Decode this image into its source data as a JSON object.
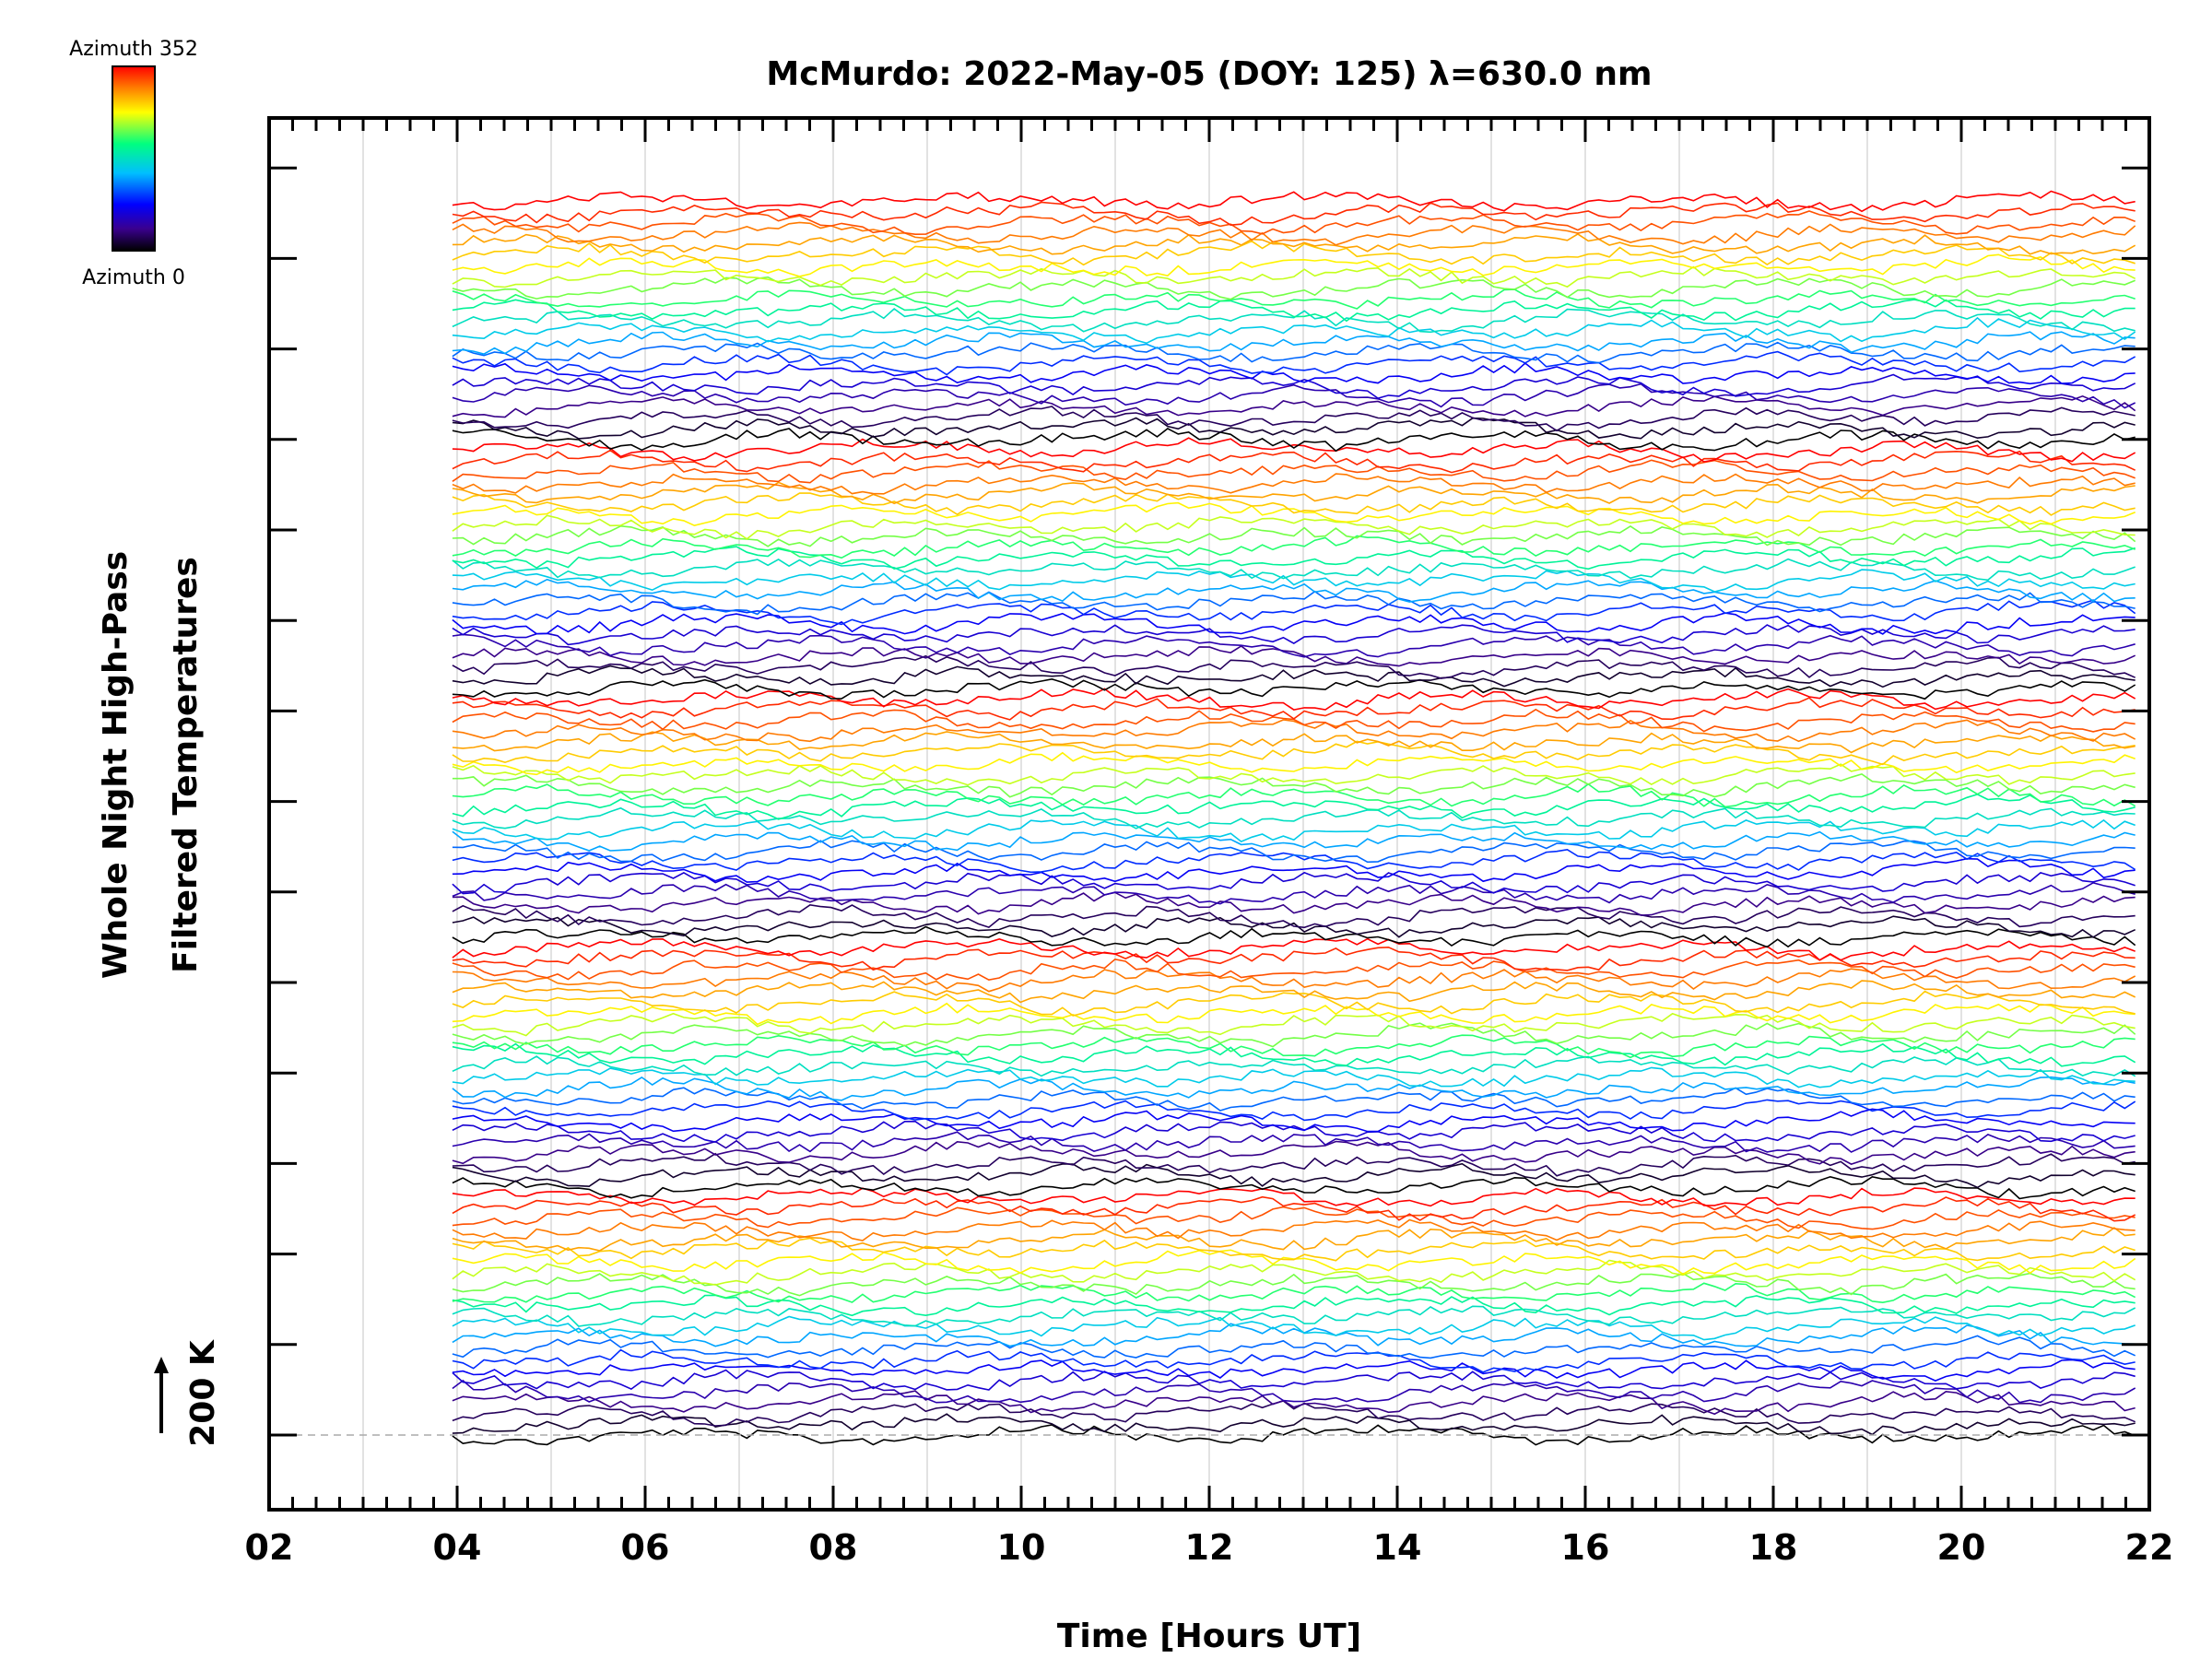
{
  "chart_data": {
    "type": "line",
    "title": "McMurdo: 2022-May-05 (DOY: 125) λ=630.0 nm",
    "xlabel": "Time [Hours UT]",
    "ylabel_line1": "Whole Night High-Pass",
    "ylabel_line2": "Filtered Temperatures",
    "scale_label": "200 K",
    "xlim": [
      2,
      22
    ],
    "x_ticks": [
      "02",
      "04",
      "06",
      "08",
      "10",
      "12",
      "14",
      "16",
      "18",
      "20",
      "22"
    ],
    "x_tick_values": [
      2,
      4,
      6,
      8,
      10,
      12,
      14,
      16,
      18,
      20,
      22
    ],
    "data_time_range": [
      3.95,
      21.85
    ],
    "grid": "vertical lines every hour",
    "colorbar": {
      "top_label": "Azimuth 352",
      "bottom_label": "Azimuth 0",
      "azimuth_range": [
        0,
        352
      ],
      "colormap": "rainbow",
      "colors": [
        "#000000",
        "#3a0090",
        "#0000ff",
        "#00bfff",
        "#00ff80",
        "#ffff00",
        "#ff8000",
        "#ff0000"
      ]
    },
    "series_count": 115,
    "series_note_visible": "stacked offset traces, colored by azimuth"
  }
}
